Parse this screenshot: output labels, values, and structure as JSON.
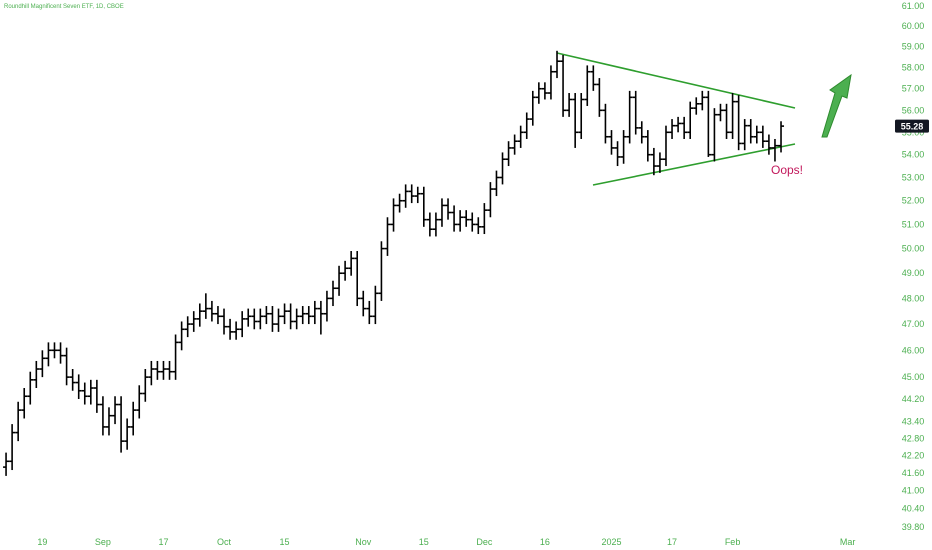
{
  "chart_data": {
    "type": "ohlc",
    "title": "Roundhill Magnificent Seven ETF, 1D, CBOE",
    "annotation": "Oops!",
    "color": "#000000",
    "axis_color": "#4caf50",
    "log": true,
    "grid": false,
    "xlim": [
      -1,
      146
    ],
    "ylim": [
      39.7,
      61.3
    ],
    "xticks": [
      {
        "value": 6,
        "label": "19"
      },
      {
        "value": 16,
        "label": "Sep"
      },
      {
        "value": 26,
        "label": "17"
      },
      {
        "value": 36,
        "label": "Oct"
      },
      {
        "value": 46,
        "label": "15"
      },
      {
        "value": 59,
        "label": "Nov"
      },
      {
        "value": 69,
        "label": "15"
      },
      {
        "value": 79,
        "label": "Dec"
      },
      {
        "value": 89,
        "label": "16"
      },
      {
        "value": 100,
        "label": "2025"
      },
      {
        "value": 110,
        "label": "17"
      },
      {
        "value": 120,
        "label": "Feb"
      },
      {
        "value": 139,
        "label": "Mar"
      }
    ],
    "yticks": [
      {
        "value": 39.8,
        "label": "39.80"
      },
      {
        "value": 40.4,
        "label": "40.40"
      },
      {
        "value": 41,
        "label": "41.00"
      },
      {
        "value": 41.6,
        "label": "41.60"
      },
      {
        "value": 42.2,
        "label": "42.20"
      },
      {
        "value": 42.8,
        "label": "42.80"
      },
      {
        "value": 43.4,
        "label": "43.40"
      },
      {
        "value": 44.2,
        "label": "44.20"
      },
      {
        "value": 45,
        "label": "45.00"
      },
      {
        "value": 46,
        "label": "46.00"
      },
      {
        "value": 47,
        "label": "47.00"
      },
      {
        "value": 48,
        "label": "48.00"
      },
      {
        "value": 49,
        "label": "49.00"
      },
      {
        "value": 50,
        "label": "50.00"
      },
      {
        "value": 51,
        "label": "51.00"
      },
      {
        "value": 52,
        "label": "52.00"
      },
      {
        "value": 53,
        "label": "53.00"
      },
      {
        "value": 54,
        "label": "54.00"
      },
      {
        "value": 55,
        "label": "55.00"
      },
      {
        "value": 56,
        "label": "56.00"
      },
      {
        "value": 57,
        "label": "57.00"
      },
      {
        "value": 58,
        "label": "58.00"
      },
      {
        "value": 59,
        "label": "59.00"
      },
      {
        "value": 60,
        "label": "60.00"
      },
      {
        "value": 61,
        "label": "61.00"
      }
    ],
    "open": [
      41.8,
      42.0,
      43.0,
      43.8,
      44.3,
      44.9,
      45.3,
      45.7,
      46.0,
      46.0,
      45.8,
      45.0,
      44.8,
      44.5,
      44.3,
      44.6,
      44.0,
      43.2,
      43.6,
      44.0,
      42.7,
      43.2,
      43.8,
      44.4,
      45.0,
      45.3,
      45.2,
      45.3,
      45.2,
      46.3,
      46.8,
      47.0,
      47.2,
      47.5,
      47.6,
      47.4,
      47.3,
      46.9,
      46.7,
      46.8,
      47.2,
      47.3,
      47.1,
      47.3,
      47.4,
      47.0,
      47.3,
      47.5,
      47.1,
      47.3,
      47.4,
      47.3,
      47.6,
      47.4,
      48.0,
      48.4,
      49.0,
      49.2,
      49.6,
      48.0,
      47.6,
      47.3,
      48.2,
      50.0,
      51.0,
      51.8,
      52.0,
      52.4,
      52.2,
      52.3,
      51.2,
      50.8,
      51.2,
      51.8,
      51.5,
      51.0,
      51.3,
      51.2,
      51.0,
      50.9,
      51.6,
      52.5,
      53.0,
      53.8,
      54.3,
      54.6,
      55.0,
      55.6,
      56.6,
      57.0,
      56.8,
      57.8,
      58.3,
      56.0,
      56.5,
      55.0,
      56.5,
      57.8,
      57.2,
      56.0,
      54.8,
      54.3,
      53.9,
      54.8,
      56.6,
      55.2,
      54.8,
      54.0,
      53.5,
      53.8,
      55.0,
      55.3,
      55.4,
      55.0,
      56.1,
      56.3,
      56.6,
      54.0,
      55.8,
      56.0,
      55.0,
      56.4,
      54.5,
      55.3,
      54.8,
      55.0,
      54.6,
      54.3,
      54.4
    ],
    "high": [
      42.3,
      43.3,
      44.1,
      44.6,
      45.2,
      45.6,
      46.0,
      46.3,
      46.3,
      46.3,
      46.1,
      45.3,
      45.1,
      44.8,
      44.9,
      44.9,
      44.3,
      43.9,
      44.3,
      44.3,
      43.5,
      44.1,
      44.7,
      45.3,
      45.6,
      45.6,
      45.6,
      45.6,
      46.6,
      47.1,
      47.3,
      47.5,
      47.8,
      48.2,
      47.9,
      47.7,
      47.6,
      47.2,
      47.1,
      47.5,
      47.6,
      47.6,
      47.6,
      47.7,
      47.7,
      47.6,
      47.8,
      47.8,
      47.6,
      47.7,
      47.7,
      47.9,
      47.9,
      48.3,
      48.7,
      49.3,
      49.5,
      49.9,
      49.9,
      48.3,
      47.9,
      48.5,
      50.3,
      51.3,
      52.1,
      52.3,
      52.7,
      52.7,
      52.6,
      52.6,
      51.5,
      51.5,
      52.1,
      52.1,
      51.8,
      51.6,
      51.6,
      51.5,
      51.3,
      51.9,
      52.8,
      53.3,
      54.1,
      54.6,
      54.9,
      55.3,
      55.9,
      56.9,
      57.3,
      57.3,
      58.1,
      58.8,
      58.6,
      56.8,
      56.8,
      56.8,
      58.1,
      58.1,
      57.5,
      56.3,
      55.1,
      54.6,
      55.1,
      56.9,
      56.9,
      55.5,
      55.1,
      54.3,
      54.1,
      55.3,
      55.6,
      55.7,
      55.7,
      56.4,
      56.6,
      56.9,
      56.9,
      56.1,
      56.3,
      56.3,
      56.8,
      56.7,
      55.6,
      55.6,
      55.3,
      55.3,
      54.9,
      54.7,
      55.5
    ],
    "low": [
      41.5,
      41.7,
      42.7,
      43.5,
      44.0,
      44.6,
      45.0,
      45.4,
      45.7,
      45.5,
      44.7,
      44.5,
      44.2,
      44.0,
      44.0,
      43.7,
      42.9,
      42.9,
      43.3,
      42.3,
      42.4,
      42.9,
      43.5,
      44.1,
      44.7,
      44.9,
      44.9,
      44.9,
      44.9,
      46.0,
      46.5,
      46.7,
      46.9,
      47.2,
      47.1,
      47.0,
      46.6,
      46.4,
      46.4,
      46.5,
      46.9,
      46.8,
      46.8,
      47.0,
      46.7,
      46.7,
      47.0,
      46.8,
      46.8,
      47.0,
      47.0,
      47.0,
      46.6,
      47.1,
      47.7,
      48.1,
      48.7,
      48.9,
      47.7,
      47.3,
      47.0,
      47.0,
      47.9,
      49.7,
      50.7,
      51.5,
      51.7,
      51.9,
      51.9,
      50.9,
      50.5,
      50.5,
      50.9,
      51.2,
      50.7,
      50.7,
      50.9,
      50.7,
      50.6,
      50.6,
      51.3,
      52.2,
      52.7,
      53.5,
      54.0,
      54.3,
      54.7,
      55.3,
      56.3,
      56.5,
      56.5,
      57.5,
      55.7,
      55.7,
      54.3,
      54.7,
      56.2,
      56.9,
      55.7,
      54.5,
      54.0,
      53.5,
      53.6,
      54.5,
      54.9,
      54.5,
      53.7,
      53.1,
      53.2,
      53.5,
      54.7,
      55.0,
      54.7,
      54.7,
      55.8,
      56.0,
      53.9,
      53.7,
      55.5,
      54.7,
      54.7,
      54.2,
      54.2,
      54.5,
      54.5,
      54.3,
      54.0,
      53.7,
      54.1
    ],
    "close": [
      42.0,
      43.0,
      43.8,
      44.3,
      44.9,
      45.3,
      45.7,
      46.0,
      46.0,
      45.8,
      45.0,
      44.8,
      44.5,
      44.3,
      44.6,
      44.0,
      43.2,
      43.6,
      44.0,
      42.7,
      43.2,
      43.8,
      44.4,
      45.0,
      45.3,
      45.2,
      45.3,
      45.2,
      46.3,
      46.8,
      47.0,
      47.2,
      47.5,
      47.6,
      47.4,
      47.3,
      46.9,
      46.7,
      46.8,
      47.2,
      47.3,
      47.1,
      47.3,
      47.4,
      47.0,
      47.3,
      47.5,
      47.1,
      47.3,
      47.4,
      47.3,
      47.6,
      47.4,
      48.0,
      48.4,
      49.0,
      49.2,
      49.6,
      48.0,
      47.6,
      47.3,
      48.2,
      50.0,
      51.0,
      51.8,
      52.0,
      52.4,
      52.2,
      52.3,
      51.2,
      50.8,
      51.2,
      51.8,
      51.5,
      51.0,
      51.3,
      51.2,
      51.0,
      50.9,
      51.6,
      52.5,
      53.0,
      53.8,
      54.3,
      54.6,
      55.0,
      55.6,
      56.6,
      57.0,
      56.8,
      57.8,
      58.3,
      56.0,
      56.5,
      55.0,
      56.5,
      57.8,
      57.2,
      56.0,
      54.8,
      54.3,
      53.9,
      54.8,
      56.6,
      55.2,
      54.8,
      54.0,
      53.5,
      53.8,
      55.0,
      55.3,
      55.4,
      55.0,
      56.1,
      56.3,
      56.6,
      54.0,
      55.8,
      56.0,
      55.0,
      56.4,
      54.5,
      55.3,
      54.8,
      55.0,
      54.6,
      54.3,
      54.4,
      55.28
    ]
  }
}
